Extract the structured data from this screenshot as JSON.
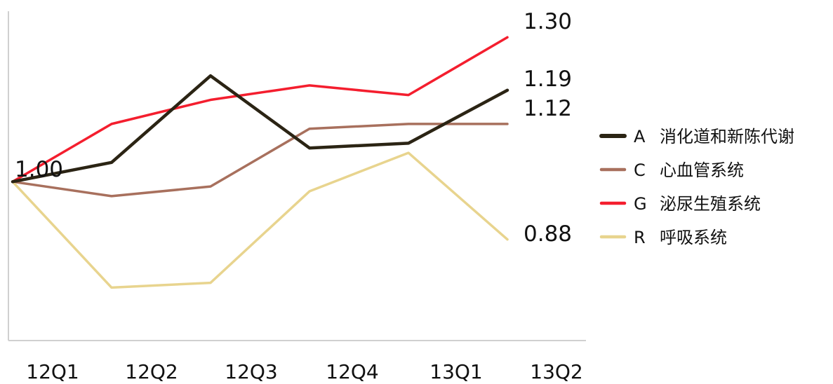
{
  "chart_data": {
    "type": "line",
    "categories": [
      "12Q1",
      "12Q2",
      "12Q3",
      "12Q4",
      "13Q1",
      "13Q2"
    ],
    "series": [
      {
        "code": "A",
        "name": "消化道和新陈代谢",
        "color": "#2b2414",
        "values": [
          1.0,
          1.04,
          1.22,
          1.07,
          1.08,
          1.19
        ]
      },
      {
        "code": "C",
        "name": "心血管系统",
        "color": "#a8705d",
        "values": [
          1.0,
          0.97,
          0.99,
          1.11,
          1.12,
          1.12
        ]
      },
      {
        "code": "G",
        "name": "泌尿生殖系统",
        "color": "#f41e2e",
        "values": [
          1.0,
          1.12,
          1.17,
          1.2,
          1.18,
          1.3
        ]
      },
      {
        "code": "R",
        "name": "呼吸系统",
        "color": "#e8d48e",
        "values": [
          1.0,
          0.78,
          0.79,
          0.98,
          1.06,
          0.88
        ]
      }
    ],
    "value_labels": [
      "1.30",
      "1.19",
      "1.12",
      "0.88"
    ],
    "start_label": "1.00",
    "ylim": [
      0.67,
      1.36
    ],
    "grid": false,
    "legend_placement": "right",
    "title": "",
    "xlabel": "",
    "ylabel": ""
  }
}
